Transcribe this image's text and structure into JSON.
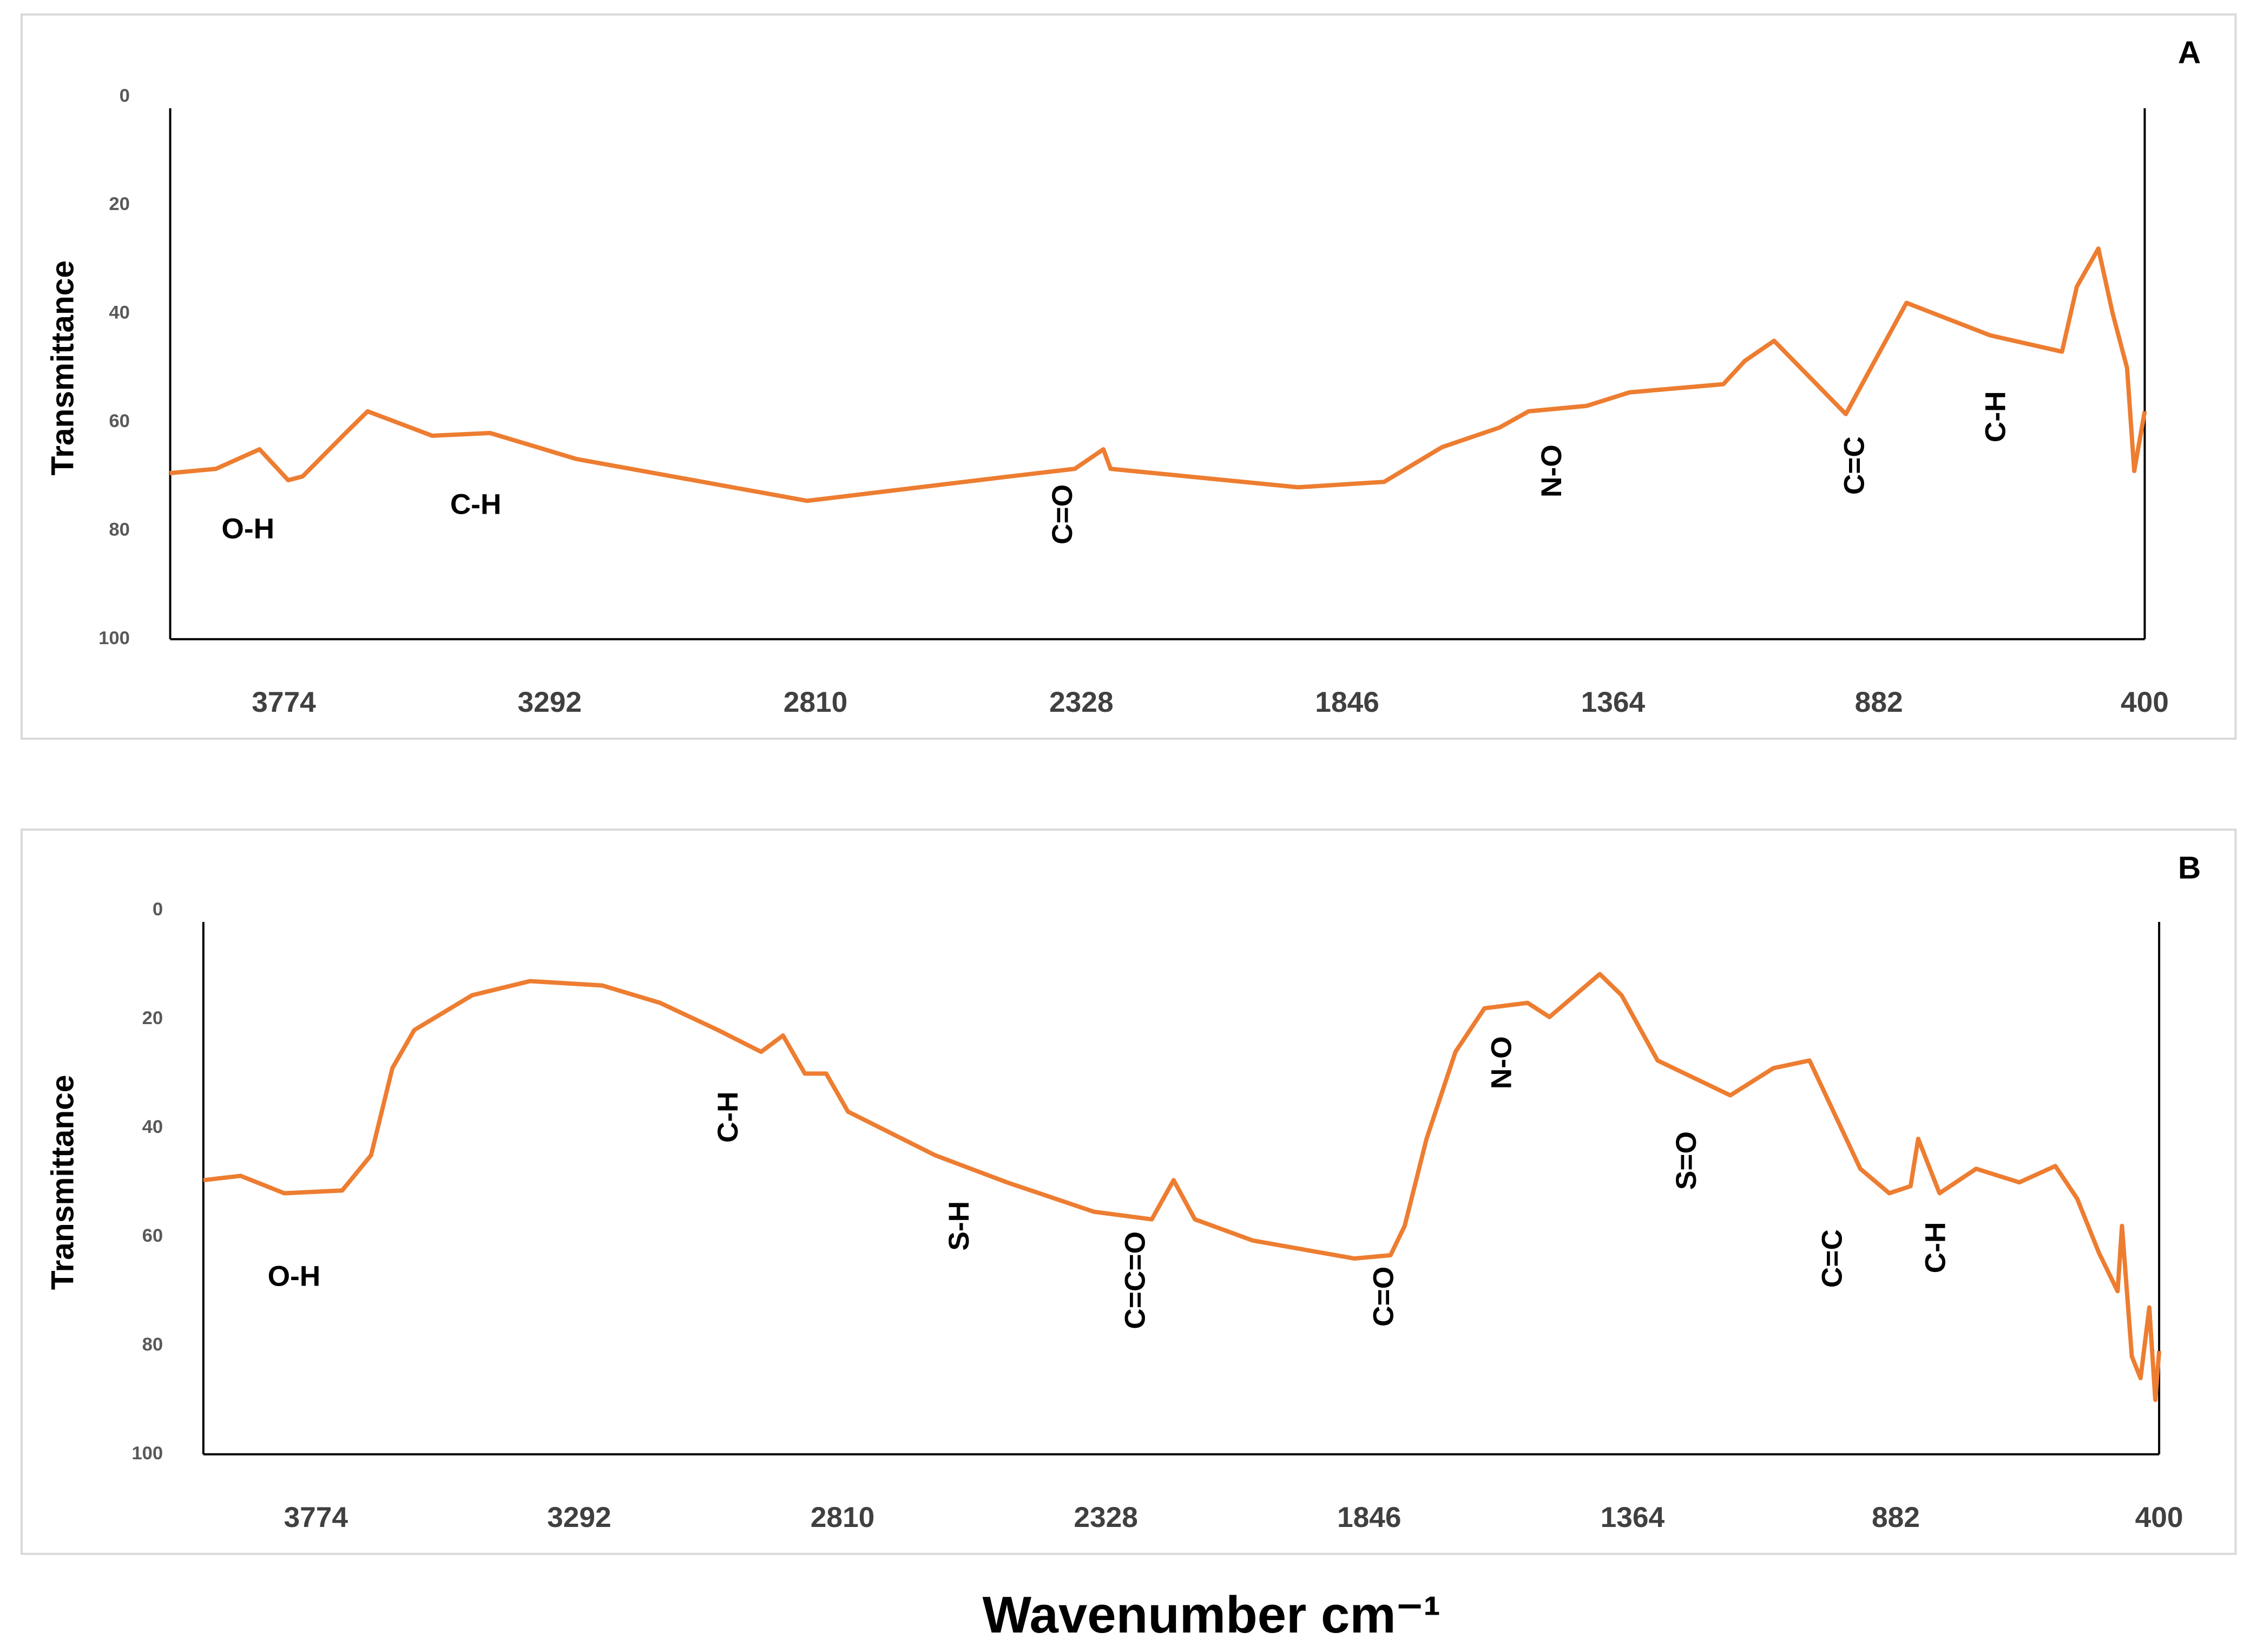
{
  "chart_data": [
    {
      "type": "line",
      "panel_label": "A",
      "y_label": "Transmittance",
      "xlim": [
        3980,
        400
      ],
      "ylim": [
        0,
        100
      ],
      "y_inverted": true,
      "xticks": [
        3774,
        3292,
        2810,
        2328,
        1846,
        1364,
        882,
        400
      ],
      "yticks": [
        0,
        20,
        40,
        60,
        80,
        100
      ],
      "grid": false,
      "x": [
        3981,
        3897,
        3818,
        3766,
        3740,
        3662,
        3622,
        3505,
        3400,
        3243,
        2825,
        2458,
        2340,
        2288,
        2275,
        1935,
        1779,
        1674,
        1570,
        1517,
        1412,
        1334,
        1164,
        1125,
        1072,
        942,
        832,
        680,
        550,
        523,
        484,
        458,
        432,
        419,
        400
      ],
      "series": [
        {
          "color": "#ed7d31",
          "values": [
            69.4,
            68.6,
            65,
            70.7,
            70,
            62,
            58,
            62.5,
            62,
            66.8,
            74.5,
            70,
            68.6,
            65,
            68.6,
            72,
            71,
            64.6,
            61,
            58,
            57,
            54.5,
            53,
            48.7,
            45,
            58.5,
            38,
            44,
            47,
            35,
            28,
            40,
            50,
            69,
            58
          ]
        }
      ],
      "annotations": [
        {
          "text": "O-H",
          "x": 3839,
          "y": 80,
          "rotated": false
        },
        {
          "text": "C-H",
          "x": 3426,
          "y": 75.5,
          "rotated": false
        },
        {
          "text": "C=O",
          "x": 2359,
          "y": 77,
          "rotated": true
        },
        {
          "text": "N-O",
          "x": 1472,
          "y": 69,
          "rotated": true
        },
        {
          "text": "C=C",
          "x": 923,
          "y": 68,
          "rotated": true
        },
        {
          "text": "C-H",
          "x": 667,
          "y": 59,
          "rotated": true
        }
      ]
    },
    {
      "type": "line",
      "panel_label": "B",
      "y_label": "Transmittance",
      "xlim": [
        3980,
        400
      ],
      "ylim": [
        0,
        100
      ],
      "y_inverted": true,
      "xticks": [
        3774,
        3292,
        2810,
        2328,
        1846,
        1364,
        882,
        400
      ],
      "yticks": [
        0,
        20,
        40,
        60,
        80,
        100
      ],
      "grid": false,
      "x": [
        3980,
        3912,
        3832,
        3726,
        3673,
        3634,
        3594,
        3488,
        3382,
        3250,
        3144,
        3038,
        2959,
        2919,
        2879,
        2840,
        2800,
        2641,
        2509,
        2350,
        2244,
        2204,
        2165,
        2059,
        1873,
        1807,
        1781,
        1741,
        1688,
        1635,
        1556,
        1516,
        1424,
        1384,
        1318,
        1185,
        1106,
        1040,
        947,
        894,
        855,
        841,
        802,
        735,
        656,
        590,
        550,
        510,
        476,
        468,
        450,
        434,
        418,
        407,
        400
      ],
      "series": [
        {
          "color": "#ed7d31",
          "values": [
            49.6,
            48.8,
            52,
            51.5,
            45,
            29,
            22,
            15.6,
            13,
            13.8,
            17,
            22,
            26,
            23,
            30,
            30,
            37,
            45,
            50,
            55.4,
            56.8,
            49.6,
            56.8,
            60.7,
            64,
            63.4,
            58,
            42,
            26,
            18,
            17,
            19.6,
            11.7,
            15.6,
            27.6,
            34,
            29,
            27.6,
            47.5,
            52,
            50.7,
            42,
            52,
            47.5,
            50,
            47,
            53,
            63,
            70,
            58,
            82,
            86,
            73,
            90,
            81
          ]
        }
      ],
      "annotations": [
        {
          "text": "O-H",
          "x": 3814,
          "y": 67.6,
          "rotated": false
        },
        {
          "text": "C-H",
          "x": 3016,
          "y": 38,
          "rotated": true
        },
        {
          "text": "S-H",
          "x": 2593,
          "y": 58,
          "rotated": true
        },
        {
          "text": "C=C=O",
          "x": 2271,
          "y": 68,
          "rotated": true
        },
        {
          "text": "C=O",
          "x": 1816,
          "y": 71,
          "rotated": true
        },
        {
          "text": "N-O",
          "x": 1600,
          "y": 28,
          "rotated": true
        },
        {
          "text": "S=O",
          "x": 1262,
          "y": 46,
          "rotated": true
        },
        {
          "text": "C=C",
          "x": 995,
          "y": 64,
          "rotated": true
        },
        {
          "text": "C-H",
          "x": 806,
          "y": 62,
          "rotated": true
        }
      ]
    }
  ],
  "x_label": "Wavenumber cm⁻¹"
}
